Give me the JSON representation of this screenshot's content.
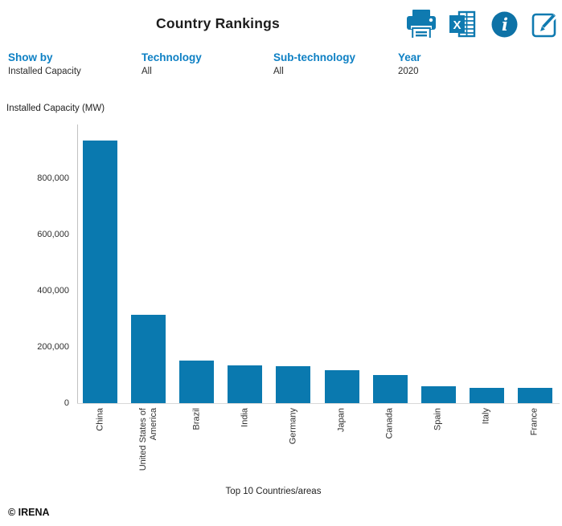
{
  "header": {
    "title": "Country Rankings",
    "icons": [
      {
        "name": "print",
        "glyph": ""
      },
      {
        "name": "excel",
        "glyph": "X"
      },
      {
        "name": "info",
        "glyph": "i"
      },
      {
        "name": "edit",
        "glyph": ""
      }
    ]
  },
  "filters": [
    {
      "label": "Show by",
      "value": "Installed Capacity"
    },
    {
      "label": "Technology",
      "value": "All"
    },
    {
      "label": "Sub-technology",
      "value": "All"
    },
    {
      "label": "Year",
      "value": "2020"
    }
  ],
  "footer": {
    "copyright": "© IRENA"
  },
  "colors": {
    "bar": "#0a79af",
    "accent_label": "#0e80c4",
    "icon": "#0f7ab0"
  },
  "chart_data": {
    "type": "bar",
    "title": "Country Rankings",
    "ylabel": "Installed Capacity (MW)",
    "xlabel": "Top 10 Countries/areas",
    "categories": [
      "China",
      "United States of America",
      "Brazil",
      "India",
      "Germany",
      "Japan",
      "Canada",
      "Spain",
      "Italy",
      "France"
    ],
    "values": [
      934000,
      313000,
      150000,
      134000,
      132000,
      117000,
      101000,
      59000,
      55000,
      54000
    ],
    "yticks": [
      0,
      200000,
      400000,
      600000,
      800000
    ],
    "ylim": [
      0,
      990000
    ],
    "grid": false,
    "legend": null,
    "bar_color": "#0a79af"
  }
}
